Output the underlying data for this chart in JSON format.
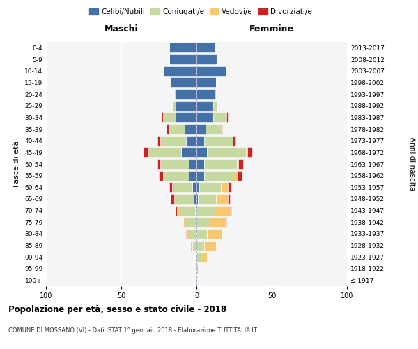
{
  "age_groups": [
    "100+",
    "95-99",
    "90-94",
    "85-89",
    "80-84",
    "75-79",
    "70-74",
    "65-69",
    "60-64",
    "55-59",
    "50-54",
    "45-49",
    "40-44",
    "35-39",
    "30-34",
    "25-29",
    "20-24",
    "15-19",
    "10-14",
    "5-9",
    "0-4"
  ],
  "birth_years": [
    "≤ 1917",
    "1918-1922",
    "1923-1927",
    "1928-1932",
    "1933-1937",
    "1938-1942",
    "1943-1947",
    "1948-1952",
    "1953-1957",
    "1958-1962",
    "1963-1967",
    "1968-1972",
    "1973-1977",
    "1978-1982",
    "1983-1987",
    "1988-1992",
    "1993-1997",
    "1998-2002",
    "2003-2007",
    "2008-2012",
    "2013-2017"
  ],
  "male": {
    "celibi": [
      0,
      0,
      0,
      0,
      0,
      0,
      1,
      2,
      3,
      5,
      5,
      10,
      7,
      8,
      14,
      14,
      14,
      17,
      22,
      18,
      18
    ],
    "coniugati": [
      0,
      0,
      1,
      3,
      5,
      8,
      10,
      12,
      13,
      17,
      19,
      22,
      17,
      10,
      8,
      2,
      1,
      0,
      0,
      0,
      0
    ],
    "vedovi": [
      0,
      0,
      0,
      1,
      1,
      1,
      2,
      1,
      0,
      0,
      0,
      0,
      0,
      0,
      0,
      0,
      0,
      0,
      0,
      0,
      0
    ],
    "divorziati": [
      0,
      0,
      0,
      0,
      1,
      0,
      1,
      2,
      2,
      3,
      2,
      3,
      2,
      2,
      1,
      0,
      0,
      0,
      0,
      0,
      0
    ]
  },
  "female": {
    "nubili": [
      0,
      0,
      0,
      0,
      0,
      0,
      0,
      1,
      2,
      5,
      5,
      7,
      5,
      6,
      11,
      11,
      12,
      13,
      20,
      14,
      12
    ],
    "coniugate": [
      0,
      1,
      3,
      5,
      7,
      9,
      12,
      12,
      14,
      19,
      22,
      26,
      19,
      10,
      9,
      3,
      1,
      0,
      0,
      0,
      0
    ],
    "vedove": [
      0,
      1,
      4,
      8,
      10,
      10,
      10,
      8,
      5,
      3,
      1,
      1,
      0,
      0,
      0,
      0,
      0,
      0,
      0,
      0,
      0
    ],
    "divorziate": [
      0,
      0,
      0,
      0,
      0,
      1,
      1,
      1,
      2,
      3,
      3,
      3,
      2,
      1,
      1,
      0,
      0,
      0,
      0,
      0,
      0
    ]
  },
  "color_celibi": "#4472a8",
  "color_coniugati": "#c5d9a0",
  "color_vedovi": "#f9c86e",
  "color_divorziati": "#cc2222",
  "title": "Popolazione per età, sesso e stato civile - 2018",
  "subtitle": "COMUNE DI MOSSANO (VI) - Dati ISTAT 1° gennaio 2018 - Elaborazione TUTTITALIA.IT",
  "xlabel_left": "Maschi",
  "xlabel_right": "Femmine",
  "ylabel": "Fasce di età",
  "ylabel_right": "Anni di nascita",
  "xlim": 100,
  "legend_labels": [
    "Celibi/Nubili",
    "Coniugati/e",
    "Vedovi/e",
    "Divorziati/e"
  ]
}
